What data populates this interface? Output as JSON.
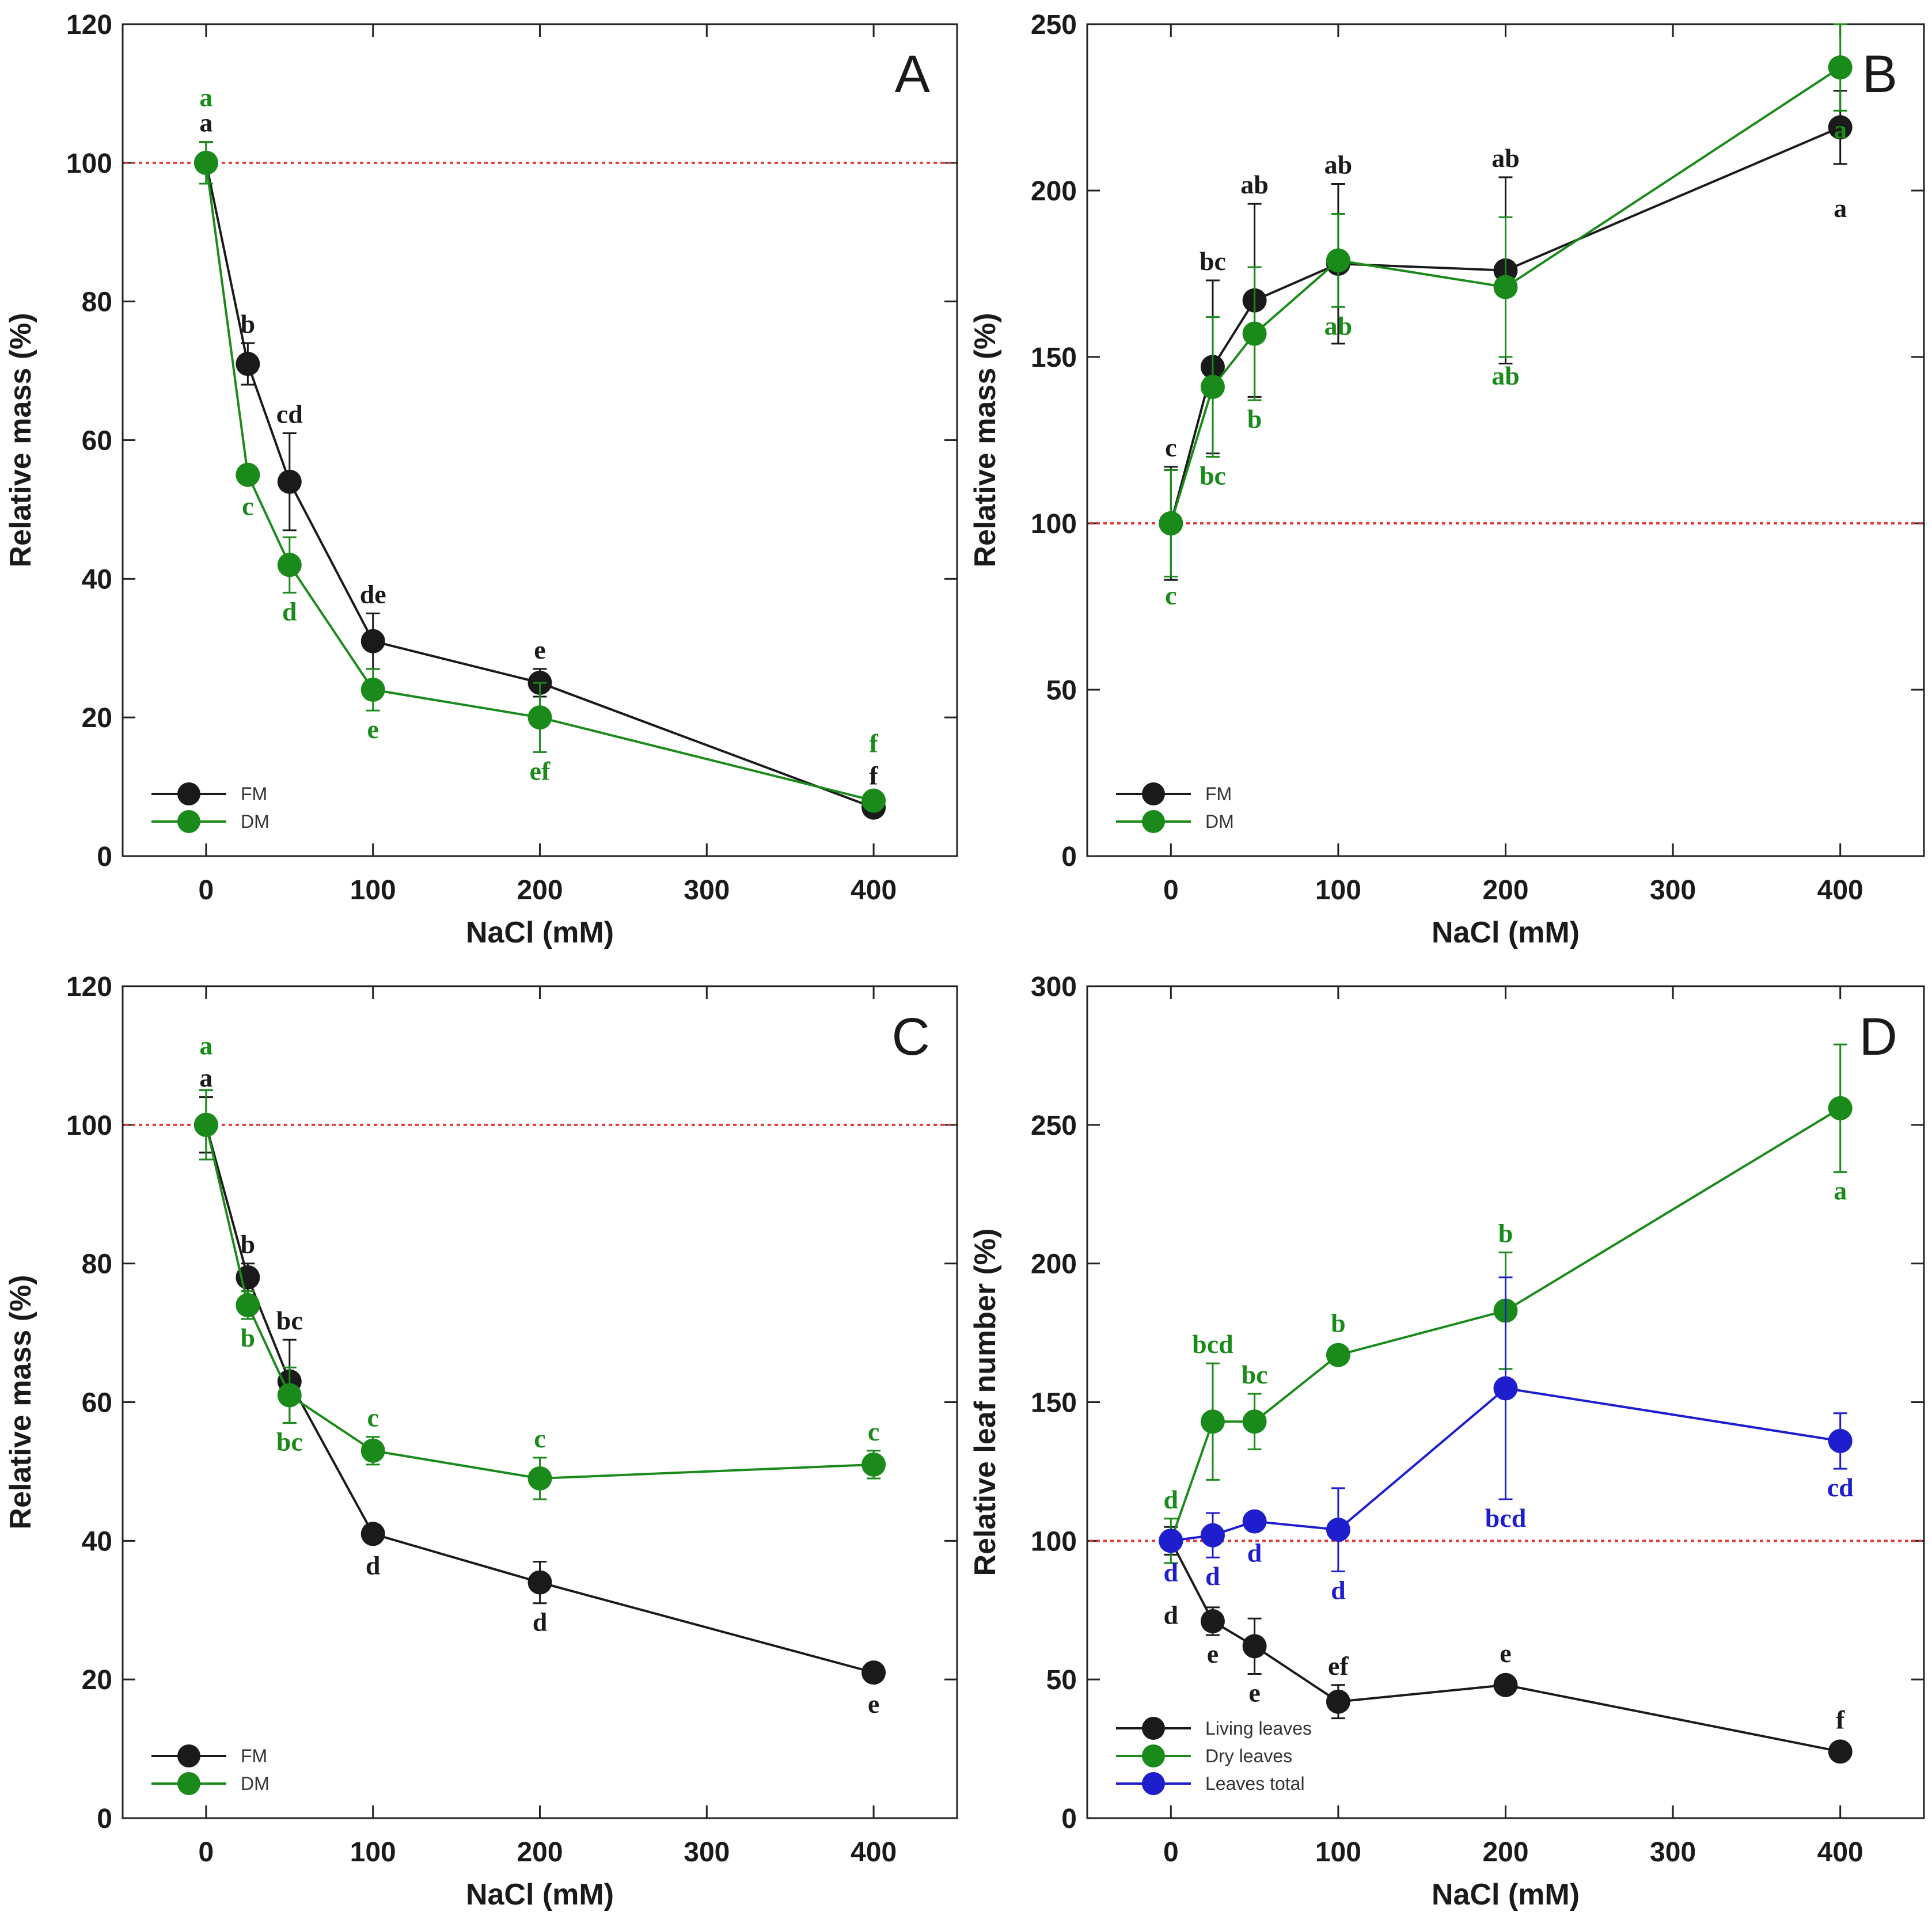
{
  "chart_data": [
    {
      "panel": "A",
      "type": "line",
      "xlabel": "NaCl (mM)",
      "ylabel": "Relative mass (%)",
      "xlim": [
        -50,
        450
      ],
      "ylim": [
        0,
        120
      ],
      "xticks": [
        0,
        100,
        200,
        300,
        400
      ],
      "yticks": [
        0,
        20,
        40,
        60,
        80,
        100,
        120
      ],
      "x": [
        0,
        25,
        50,
        100,
        200,
        400
      ],
      "reference_line": 100,
      "legend_position": "bottom-left",
      "series": [
        {
          "name": "FM",
          "color": "#1a1a1a",
          "values": [
            100,
            71,
            54,
            31,
            25,
            7
          ],
          "errors": [
            3,
            3,
            7,
            4,
            2,
            1
          ],
          "labels": [
            "a",
            "b",
            "cd",
            "de",
            "e",
            "f"
          ],
          "label_pos": [
            "above",
            "above",
            "above",
            "above",
            "above",
            "above"
          ]
        },
        {
          "name": "DM",
          "color": "#1a8a1a",
          "values": [
            100,
            55,
            42,
            24,
            20,
            8
          ],
          "errors": [
            3,
            1,
            4,
            3,
            5,
            1
          ],
          "labels": [
            "a",
            "c",
            "d",
            "e",
            "ef",
            "f"
          ],
          "label_pos": [
            "above2",
            "below",
            "below",
            "below",
            "below",
            "above2"
          ]
        }
      ]
    },
    {
      "panel": "B",
      "type": "line",
      "xlabel": "NaCl (mM)",
      "ylabel": "Relative mass (%)",
      "xlim": [
        -50,
        450
      ],
      "ylim": [
        0,
        250
      ],
      "xticks": [
        0,
        100,
        200,
        300,
        400
      ],
      "yticks": [
        0,
        50,
        100,
        150,
        200,
        250
      ],
      "x": [
        0,
        25,
        50,
        100,
        200,
        400
      ],
      "reference_line": 100,
      "legend_position": "bottom-left",
      "series": [
        {
          "name": "FM",
          "color": "#1a1a1a",
          "values": [
            100,
            147,
            167,
            178,
            176,
            219
          ],
          "errors": [
            17,
            26,
            29,
            24,
            28,
            11
          ],
          "labels": [
            "c",
            "bc",
            "ab",
            "ab",
            "ab",
            "a"
          ],
          "label_pos": [
            "above",
            "above",
            "above",
            "above",
            "above",
            "below2"
          ]
        },
        {
          "name": "DM",
          "color": "#1a8a1a",
          "values": [
            100,
            141,
            157,
            179,
            171,
            237
          ],
          "errors": [
            16,
            21,
            20,
            14,
            21,
            13
          ],
          "labels": [
            "c",
            "bc",
            "b",
            "ab",
            "ab",
            "a"
          ],
          "label_pos": [
            "below",
            "below",
            "below",
            "below",
            "below",
            "below"
          ]
        }
      ]
    },
    {
      "panel": "C",
      "type": "line",
      "xlabel": "NaCl (mM)",
      "ylabel": "Relative mass (%)",
      "xlim": [
        -50,
        450
      ],
      "ylim": [
        0,
        120
      ],
      "xticks": [
        0,
        100,
        200,
        300,
        400
      ],
      "yticks": [
        0,
        20,
        40,
        60,
        80,
        100,
        120
      ],
      "x": [
        0,
        25,
        50,
        100,
        200,
        400
      ],
      "reference_line": 100,
      "legend_position": "bottom-left",
      "series": [
        {
          "name": "FM",
          "color": "#1a1a1a",
          "values": [
            100,
            78,
            63,
            41,
            34,
            21
          ],
          "errors": [
            4,
            2,
            6,
            1,
            3,
            1
          ],
          "labels": [
            "a",
            "b",
            "bc",
            "d",
            "d",
            "e"
          ],
          "label_pos": [
            "above",
            "above",
            "above",
            "below",
            "below",
            "below"
          ]
        },
        {
          "name": "DM",
          "color": "#1a8a1a",
          "values": [
            100,
            74,
            61,
            53,
            49,
            51
          ],
          "errors": [
            5,
            2,
            4,
            2,
            3,
            2
          ],
          "labels": [
            "a",
            "b",
            "bc",
            "c",
            "c",
            "c"
          ],
          "label_pos": [
            "above2",
            "below",
            "below",
            "above",
            "above",
            "above"
          ]
        }
      ]
    },
    {
      "panel": "D",
      "type": "line",
      "xlabel": "NaCl (mM)",
      "ylabel": "Relative leaf number (%)",
      "xlim": [
        -50,
        450
      ],
      "ylim": [
        0,
        300
      ],
      "xticks": [
        0,
        100,
        200,
        300,
        400
      ],
      "yticks": [
        0,
        50,
        100,
        150,
        200,
        250,
        300
      ],
      "x": [
        0,
        25,
        50,
        100,
        200,
        400
      ],
      "reference_line": 100,
      "legend_position": "bottom-left",
      "series": [
        {
          "name": "Living leaves",
          "color": "#1a1a1a",
          "values": [
            100,
            71,
            62,
            42,
            48,
            24
          ],
          "errors": [
            5,
            5,
            10,
            6,
            3,
            2
          ],
          "labels": [
            "d",
            "e",
            "e",
            "ef",
            "e",
            "f"
          ],
          "label_pos": [
            "below3",
            "below",
            "below",
            "above",
            "above",
            "above"
          ]
        },
        {
          "name": "Dry leaves",
          "color": "#1a8a1a",
          "values": [
            100,
            143,
            143,
            167,
            183,
            256
          ],
          "errors": [
            8,
            21,
            10,
            3,
            21,
            23
          ],
          "labels": [
            "d",
            "bcd",
            "bc",
            "b",
            "b",
            "a"
          ],
          "label_pos": [
            "above",
            "above",
            "above",
            "above",
            "above",
            "below"
          ]
        },
        {
          "name": "Leaves total",
          "color": "#1e1ecc",
          "values": [
            100,
            102,
            107,
            104,
            155,
            136
          ],
          "errors": [
            3,
            8,
            3,
            15,
            40,
            10
          ],
          "labels": [
            "d",
            "d",
            "d",
            "d",
            "bcd",
            "cd"
          ],
          "label_pos": [
            "below",
            "below",
            "below",
            "below",
            "below",
            "below"
          ]
        }
      ]
    }
  ]
}
